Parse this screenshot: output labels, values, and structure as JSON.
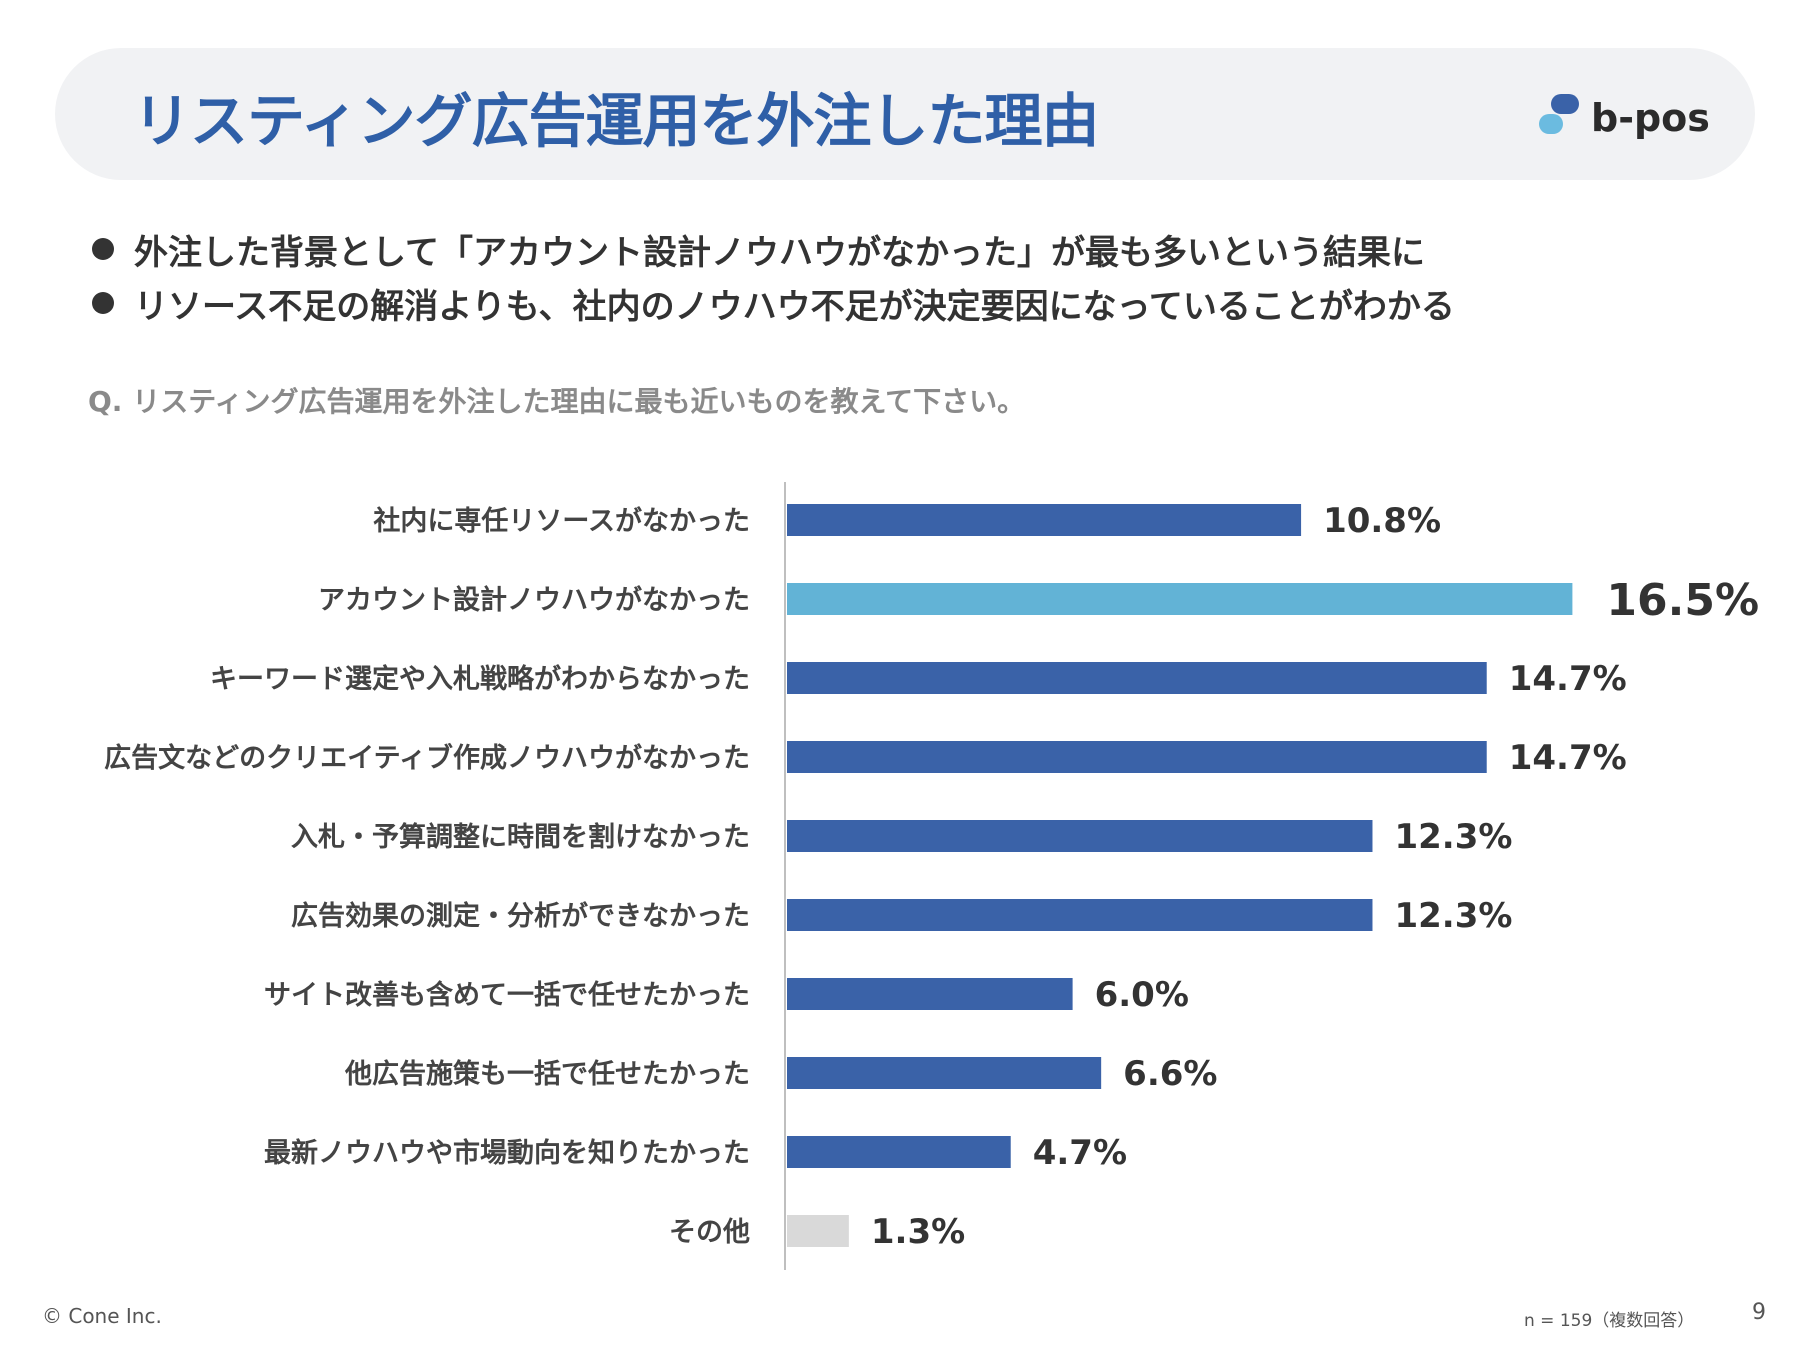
{
  "header": {
    "title": "リスティング広告運用を外注した理由",
    "brand": "b-pos"
  },
  "bullets": [
    "外注した背景として「アカウント設計ノウハウがなかった」が最も多いという結果に",
    "リソース不足の解消よりも、社内のノウハウ不足が決定要因になっていることがわかる"
  ],
  "question": "Q. リスティング広告運用を外注した理由に最も近いものを教えて下さい。",
  "colors": {
    "bar": "#3a62a8",
    "highlight": "#62b3d6",
    "other": "#d9d9d9",
    "title": "#2f5fa7",
    "logo_dark": "#3a62a8",
    "logo_light": "#6bbbe0"
  },
  "chart_data": {
    "type": "bar",
    "orientation": "horizontal",
    "title": "",
    "xlabel": "",
    "ylabel": "",
    "xlim": [
      0,
      18
    ],
    "grid": false,
    "categories": [
      "社内に専任リソースがなかった",
      "アカウント設計ノウハウがなかった",
      "キーワード選定や入札戦略がわからなかった",
      "広告文などのクリエイティブ作成ノウハウがなかった",
      "入札・予算調整に時間を割けなかった",
      "広告効果の測定・分析ができなかった",
      "サイト改善も含めて一括で任せたかった",
      "他広告施策も一括で任せたかった",
      "最新ノウハウや市場動向を知りたかった",
      "その他"
    ],
    "values": [
      10.8,
      16.5,
      14.7,
      14.7,
      12.3,
      12.3,
      6.0,
      6.6,
      4.7,
      1.3
    ],
    "labels": [
      "10.8%",
      "16.5%",
      "14.7%",
      "14.7%",
      "12.3%",
      "12.3%",
      "6.0%",
      "6.6%",
      "4.7%",
      "1.3%"
    ],
    "highlight_index": 1,
    "other_index": 9
  },
  "footer": {
    "copyright": "© Cone Inc.",
    "sample": "n = 159（複数回答）",
    "page": "9"
  }
}
